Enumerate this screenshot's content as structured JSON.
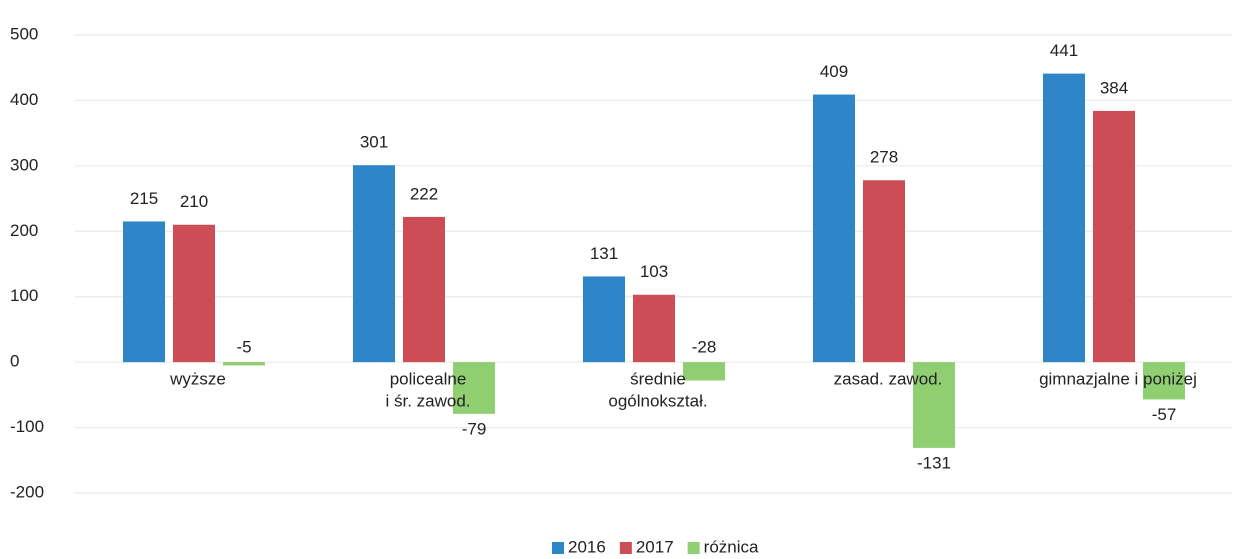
{
  "chart_data": {
    "type": "bar",
    "categories": [
      [
        "wyższe"
      ],
      [
        "policealne",
        "i śr. zawod."
      ],
      [
        "średnie",
        "ogólnokształ."
      ],
      [
        "zasad. zawod."
      ],
      [
        "gimnazjalne i poniżej"
      ]
    ],
    "series": [
      {
        "name": "2016",
        "color": "#2e86c9",
        "values": [
          215,
          301,
          131,
          409,
          441
        ]
      },
      {
        "name": "2017",
        "color": "#cc4d55",
        "values": [
          210,
          222,
          103,
          278,
          384
        ]
      },
      {
        "name": "różnica",
        "color": "#8fcf72",
        "values": [
          -5,
          -79,
          -28,
          -131,
          -57
        ]
      }
    ],
    "ylim": [
      -200,
      500
    ],
    "yticks": [
      -200,
      -100,
      0,
      100,
      200,
      300,
      400,
      500
    ],
    "grid": true,
    "legend": "bottom"
  }
}
